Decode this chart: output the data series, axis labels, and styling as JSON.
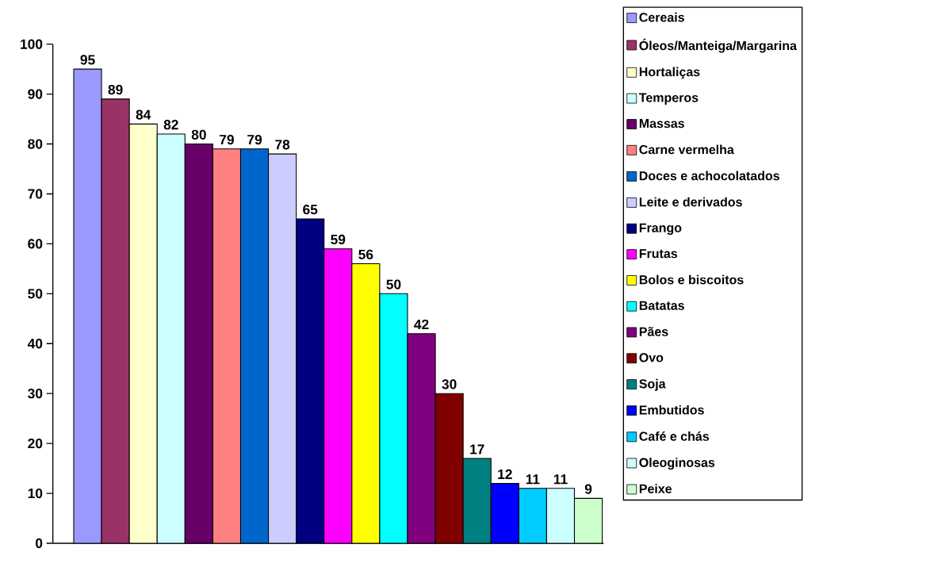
{
  "chart_data": {
    "type": "bar",
    "categories": [
      null
    ],
    "series": [
      {
        "name": "Cereais",
        "color": "#9999ff",
        "values": [
          95
        ]
      },
      {
        "name": "Óleos/Manteiga/Margarina",
        "color": "#993366",
        "values": [
          89
        ]
      },
      {
        "name": "Hortaliças",
        "color": "#ffffcc",
        "values": [
          84
        ]
      },
      {
        "name": "Temperos",
        "color": "#ccffff",
        "values": [
          82
        ]
      },
      {
        "name": "Massas",
        "color": "#660066",
        "values": [
          80
        ]
      },
      {
        "name": "Carne vermelha",
        "color": "#ff8080",
        "values": [
          79
        ]
      },
      {
        "name": "Doces e achocolatados",
        "color": "#0066cc",
        "values": [
          79
        ]
      },
      {
        "name": "Leite e derivados",
        "color": "#ccccff",
        "values": [
          78
        ]
      },
      {
        "name": "Frango",
        "color": "#000080",
        "values": [
          65
        ]
      },
      {
        "name": "Frutas",
        "color": "#ff00ff",
        "values": [
          59
        ]
      },
      {
        "name": "Bolos e biscoitos",
        "color": "#ffff00",
        "values": [
          56
        ]
      },
      {
        "name": "Batatas",
        "color": "#00ffff",
        "values": [
          50
        ]
      },
      {
        "name": "Pães",
        "color": "#800080",
        "values": [
          42
        ]
      },
      {
        "name": "Ovo",
        "color": "#800000",
        "values": [
          30
        ]
      },
      {
        "name": "Soja",
        "color": "#008080",
        "values": [
          17
        ]
      },
      {
        "name": "Embutidos",
        "color": "#0000ff",
        "values": [
          12
        ]
      },
      {
        "name": "Café e chás",
        "color": "#00ccff",
        "values": [
          11
        ]
      },
      {
        "name": "Oleoginosas",
        "color": "#ccffff",
        "values": [
          11
        ]
      },
      {
        "name": "Peixe",
        "color": "#ccffcc",
        "values": [
          9
        ]
      }
    ],
    "ylim": [
      0,
      100
    ],
    "yticks": [
      0,
      10,
      20,
      30,
      40,
      50,
      60,
      70,
      80,
      90,
      100
    ],
    "data_labels": true,
    "legend": "right",
    "grid": false
  }
}
